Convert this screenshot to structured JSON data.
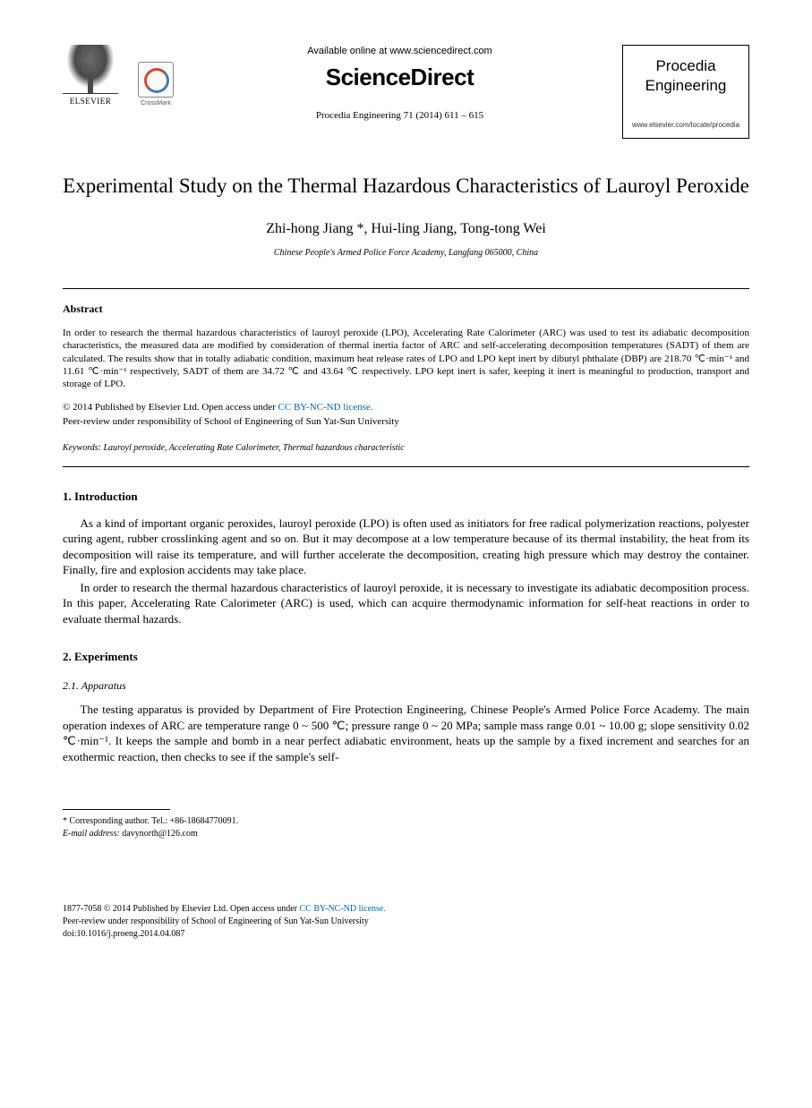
{
  "header": {
    "elsevier_label": "ELSEVIER",
    "crossmark_label": "CrossMark",
    "available_text": "Available online at www.sciencedirect.com",
    "brand": "ScienceDirect",
    "citation": "Procedia Engineering 71 (2014) 611 – 615",
    "journal_name_line1": "Procedia",
    "journal_name_line2": "Engineering",
    "journal_url": "www.elsevier.com/locate/procedia"
  },
  "title": "Experimental Study on the Thermal Hazardous Characteristics of Lauroyl Peroxide",
  "authors": "Zhi-hong Jiang *, Hui-ling Jiang, Tong-tong Wei",
  "affiliation": "Chinese People's Armed Police Force Academy, Langfang 065000, China",
  "abstract": {
    "heading": "Abstract",
    "text": "In order to research the thermal hazardous characteristics of lauroyl peroxide (LPO), Accelerating Rate Calorimeter (ARC) was used to test its adiabatic decomposition characteristics, the measured data are modified by consideration of thermal inertia factor of ARC and self-accelerating decomposition temperatures (SADT) of them are calculated. The results show that in totally adiabatic condition, maximum heat release rates of LPO and LPO kept inert by dibutyl phthalate (DBP) are 218.70 ℃·min⁻¹ and 11.61 ℃·min⁻¹ respectively, SADT of them are 34.72 ℃ and 43.64 ℃ respectively. LPO kept inert is safer, keeping it inert is meaningful to production, transport and storage of LPO."
  },
  "copyright": {
    "line1_prefix": "© 2014 Published by Elsevier Ltd. ",
    "open_access": "Open access under ",
    "cc_text": "CC BY-NC-ND license.",
    "line2": "Peer-review under responsibility of School of Engineering of Sun Yat-Sun University"
  },
  "keywords": {
    "label": "Keywords",
    "text": ": Lauroyl peroxide, Accelerating Rate Calorimeter, Thermal hazardous characteristic"
  },
  "sections": {
    "intro": {
      "heading": "1. Introduction",
      "p1": "As a kind of important organic peroxides, lauroyl peroxide (LPO) is often used as initiators for free radical polymerization reactions, polyester curing agent, rubber crosslinking agent and so on. But it may decompose at a low temperature because of its thermal instability, the heat from its decomposition will raise its temperature, and will further accelerate the decomposition, creating high pressure which may destroy the container. Finally, fire and explosion accidents may take place.",
      "p2": "In order to research the thermal hazardous characteristics of lauroyl peroxide, it is necessary to investigate its adiabatic decomposition process. In this paper, Accelerating Rate Calorimeter (ARC) is used, which can acquire thermodynamic information for self-heat reactions in order to evaluate thermal hazards."
    },
    "experiments": {
      "heading": "2. Experiments",
      "sub1": {
        "heading": "2.1. Apparatus",
        "p1": "The testing apparatus is provided by Department of Fire Protection Engineering, Chinese People's Armed Police Force Academy. The main operation indexes of ARC are temperature range 0 ~ 500 ℃; pressure range 0 ~ 20 MPa; sample mass range 0.01 ~ 10.00 g; slope sensitivity 0.02 ℃·min⁻¹. It keeps the sample and bomb in a near perfect adiabatic environment, heats up the sample by a fixed increment and searches for an exothermic reaction, then checks to see if the sample's self-"
      }
    }
  },
  "footnote": {
    "corresponding": "* Corresponding author. Tel.: +86-18684770091.",
    "email_label": "E-mail address:",
    "email": " davynorth@126.com"
  },
  "footer": {
    "issn_line_prefix": "1877-7058 © 2014 Published by Elsevier Ltd. ",
    "open_access": "Open access under ",
    "cc_text": "CC BY-NC-ND license.",
    "peer_review": "Peer-review under responsibility of School of Engineering of Sun Yat-Sun University",
    "doi": "doi:10.1016/j.proeng.2014.04.087"
  },
  "colors": {
    "text": "#000000",
    "background": "#ffffff",
    "link": "#0066aa",
    "crossmark_red": "#d4463a",
    "crossmark_blue": "#4a7bb5"
  },
  "typography": {
    "body_fontsize_pt": 10,
    "title_fontsize_pt": 18,
    "authors_fontsize_pt": 13,
    "abstract_fontsize_pt": 9,
    "font_family": "Times New Roman"
  }
}
